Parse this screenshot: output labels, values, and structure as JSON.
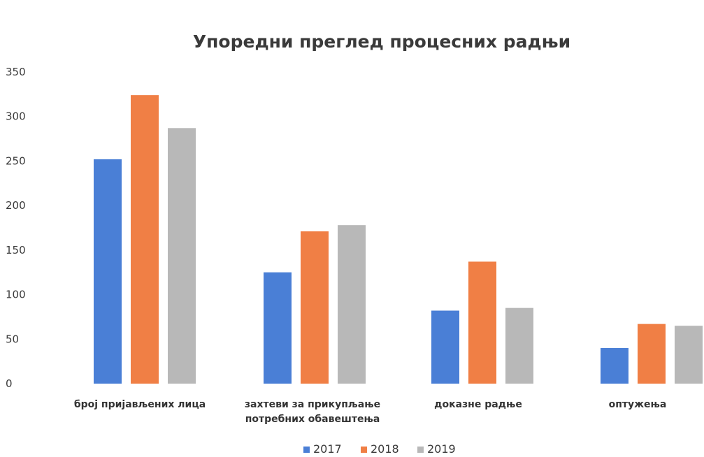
{
  "chart_data": {
    "type": "bar",
    "title": "Упоредни преглед процесних радњи",
    "xlabel": "",
    "ylabel": "",
    "ylim": [
      0,
      350
    ],
    "yticks": [
      0,
      50,
      100,
      150,
      200,
      250,
      300,
      350
    ],
    "grid": false,
    "legend_position": "bottom",
    "categories": [
      [
        "број пријављених лица"
      ],
      [
        "захтеви за прикупљање",
        "потребних обавештења"
      ],
      [
        "доказне радње"
      ],
      [
        "оптужења"
      ]
    ],
    "series": [
      {
        "name": "2017",
        "color": "#4a7fd6",
        "values": [
          252,
          125,
          82,
          40
        ]
      },
      {
        "name": "2018",
        "color": "#f07f45",
        "values": [
          324,
          171,
          137,
          67
        ]
      },
      {
        "name": "2019",
        "color": "#b8b8b8",
        "values": [
          287,
          178,
          85,
          65
        ]
      }
    ]
  }
}
